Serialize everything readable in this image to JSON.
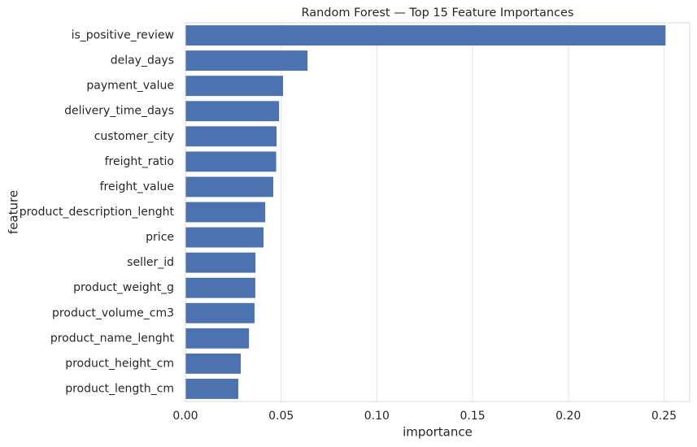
{
  "chart_data": {
    "type": "barh",
    "title": "Random Forest — Top 15 Feature Importances",
    "xlabel": "importance",
    "ylabel": "feature",
    "categories": [
      "is_positive_review",
      "delay_days",
      "payment_value",
      "delivery_time_days",
      "customer_city",
      "freight_ratio",
      "freight_value",
      "product_description_lenght",
      "price",
      "seller_id",
      "product_weight_g",
      "product_volume_cm3",
      "product_name_lenght",
      "product_height_cm",
      "product_length_cm"
    ],
    "values": [
      0.2508,
      0.0638,
      0.051,
      0.0489,
      0.0476,
      0.0474,
      0.0459,
      0.0417,
      0.0408,
      0.0366,
      0.0365,
      0.0361,
      0.0332,
      0.0289,
      0.0276
    ],
    "color": "#4c72b0",
    "xlim": [
      0,
      0.2634
    ],
    "xticks": [
      {
        "value": 0,
        "label": "0.00"
      },
      {
        "value": 0.05,
        "label": "0.05"
      },
      {
        "value": 0.1,
        "label": "0.10"
      },
      {
        "value": 0.15,
        "label": "0.15"
      },
      {
        "value": 0.2,
        "label": "0.20"
      },
      {
        "value": 0.25,
        "label": "0.25"
      }
    ],
    "grid": true
  }
}
